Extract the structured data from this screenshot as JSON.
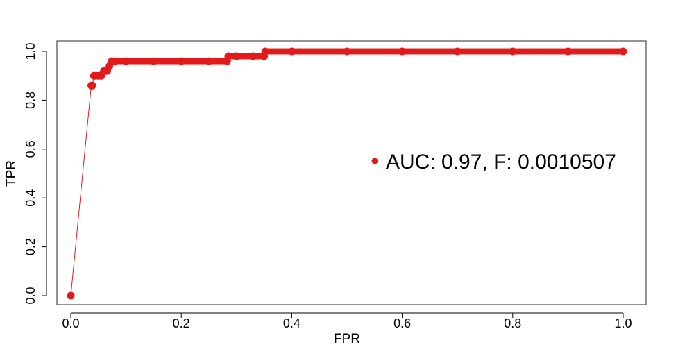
{
  "chart_data": {
    "type": "scatter",
    "xlabel": "FPR",
    "ylabel": "TPR",
    "xlim": [
      0,
      1
    ],
    "ylim": [
      0,
      1
    ],
    "x_ticks": [
      "0.0",
      "0.2",
      "0.4",
      "0.6",
      "0.8",
      "1.0"
    ],
    "y_ticks": [
      "0.0",
      "0.2",
      "0.4",
      "0.6",
      "0.8",
      "1.0"
    ],
    "grid": false,
    "legend_position": "right",
    "series": [
      {
        "name": "AUC: 0.97, F: 0.0010507",
        "color": "#e31a1c",
        "x": [
          0.0,
          0.037,
          0.039,
          0.042,
          0.045,
          0.05,
          0.055,
          0.06,
          0.062,
          0.066,
          0.07,
          0.074,
          0.08,
          0.1,
          0.15,
          0.2,
          0.25,
          0.283,
          0.285,
          0.3,
          0.33,
          0.35,
          0.352,
          0.4,
          0.5,
          0.6,
          0.7,
          0.8,
          0.9,
          1.0
        ],
        "y": [
          0.0,
          0.86,
          0.86,
          0.9,
          0.9,
          0.9,
          0.9,
          0.92,
          0.92,
          0.92,
          0.94,
          0.96,
          0.96,
          0.96,
          0.96,
          0.96,
          0.96,
          0.96,
          0.98,
          0.98,
          0.98,
          0.98,
          1.0,
          1.0,
          1.0,
          1.0,
          1.0,
          1.0,
          1.0,
          1.0
        ]
      }
    ],
    "legend": {
      "label": "AUC: 0.97, F: 0.0010507",
      "color": "#e31a1c"
    }
  }
}
